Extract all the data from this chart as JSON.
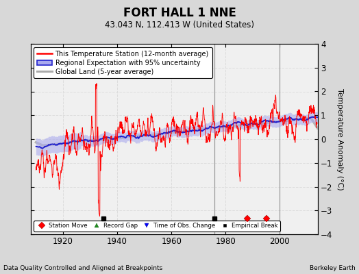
{
  "title": "FORT HALL 1 NNE",
  "subtitle": "43.043 N, 112.413 W (United States)",
  "xlabel_left": "Data Quality Controlled and Aligned at Breakpoints",
  "xlabel_right": "Berkeley Earth",
  "ylabel": "Temperature Anomaly (°C)",
  "xlim": [
    1908,
    2014
  ],
  "ylim": [
    -4,
    4
  ],
  "yticks": [
    -4,
    -3,
    -2,
    -1,
    0,
    1,
    2,
    3,
    4
  ],
  "xticks": [
    1920,
    1940,
    1960,
    1980,
    2000
  ],
  "year_start": 1910,
  "year_end": 2013,
  "bg_color": "#d8d8d8",
  "plot_bg_color": "#f0f0f0",
  "grid_color": "#dddddd",
  "station_color": "#ff0000",
  "regional_color": "#2222cc",
  "regional_fill_color": "#aaaaee",
  "global_color": "#aaaaaa",
  "legend_entries": [
    "This Temperature Station (12-month average)",
    "Regional Expectation with 95% uncertainty",
    "Global Land (5-year average)"
  ],
  "empirical_break_years": [
    1935,
    1976
  ],
  "station_move_years": [
    1988,
    1995
  ],
  "vertical_lines": [
    1976,
    2000
  ],
  "seed": 42
}
